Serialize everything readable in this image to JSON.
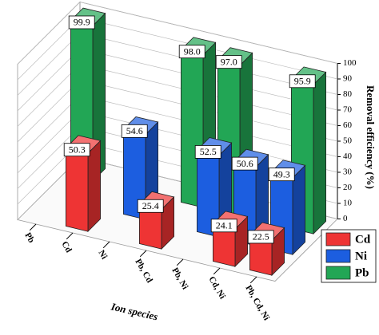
{
  "chart_data": {
    "type": "bar3d",
    "categories": [
      "Pb",
      "Cd",
      "Ni",
      "Pb, Cd",
      "Pb, Ni",
      "Cd, Ni",
      "Pb, Cd, Ni"
    ],
    "x_label": "Ion species",
    "y_label": "Removal efficiency (%)",
    "ylim": [
      0,
      100
    ],
    "yticks": [
      0,
      10,
      20,
      30,
      40,
      50,
      60,
      70,
      80,
      90,
      100
    ],
    "grid": true,
    "legend": "lower right",
    "series": [
      {
        "name": "Cd",
        "color": "#ee3434",
        "values": [
          null,
          50.3,
          null,
          25.4,
          null,
          24.1,
          22.5
        ],
        "value_labels": [
          null,
          "50.3",
          null,
          "25.4",
          null,
          "24.1",
          "22.5"
        ]
      },
      {
        "name": "Ni",
        "color": "#1c5ee0",
        "values": [
          null,
          null,
          54.6,
          null,
          52.5,
          50.6,
          49.3
        ],
        "value_labels": [
          null,
          null,
          "54.6",
          null,
          "52.5",
          "50.6",
          "49.3"
        ]
      },
      {
        "name": "Pb",
        "color": "#22a655",
        "values": [
          99.9,
          null,
          null,
          98,
          97,
          null,
          95.9
        ],
        "value_labels": [
          "99.9",
          null,
          null,
          "98.0",
          "97.0",
          null,
          "95.9"
        ]
      }
    ]
  }
}
